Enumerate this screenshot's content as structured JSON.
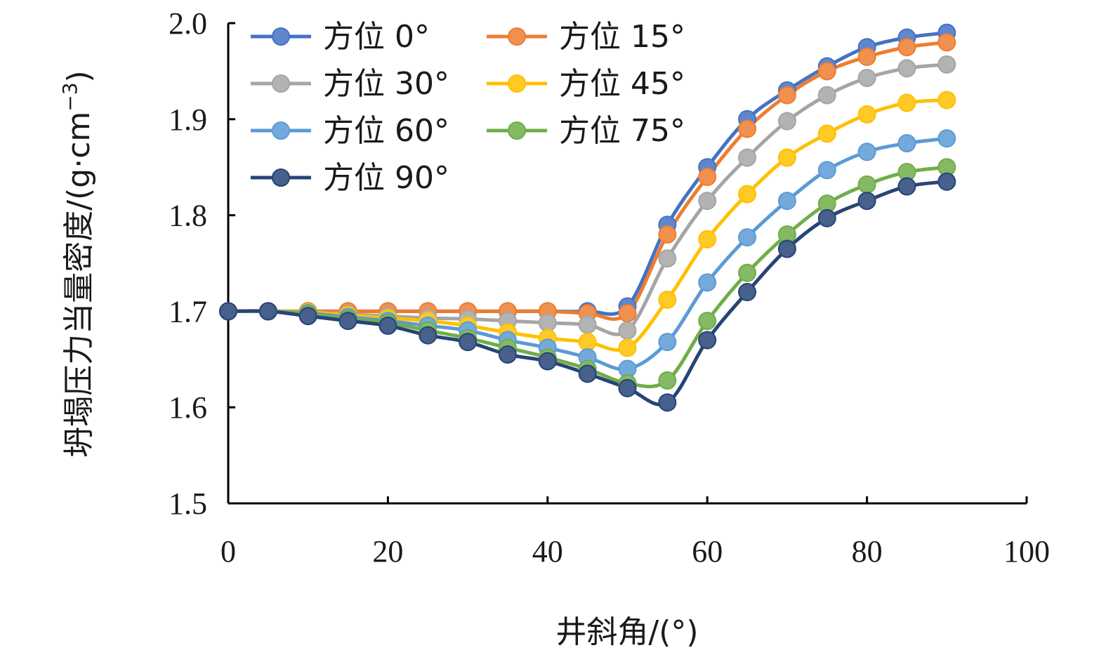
{
  "chart_data": {
    "type": "line",
    "xlabel": "井斜角/(°)",
    "ylabel": "坍塌压力当量密度/(g·cm",
    "ylabel_sup": "−3",
    "ylabel_close": ")",
    "xlim": [
      0,
      100
    ],
    "ylim": [
      1.5,
      2.0
    ],
    "xticks": [
      "0",
      "20",
      "40",
      "60",
      "80",
      "100"
    ],
    "yticks": [
      "1.5",
      "1.6",
      "1.7",
      "1.8",
      "1.9",
      "2.0"
    ],
    "grid": false,
    "legend_position": "top-left",
    "x": [
      0,
      5,
      10,
      15,
      20,
      25,
      30,
      35,
      40,
      45,
      50,
      55,
      60,
      65,
      70,
      75,
      80,
      85,
      90
    ],
    "series": [
      {
        "name": "方位 0°",
        "color": "#4472C4",
        "values": [
          1.7,
          1.7,
          1.7,
          1.7,
          1.7,
          1.7,
          1.7,
          1.7,
          1.7,
          1.7,
          1.705,
          1.79,
          1.85,
          1.9,
          1.93,
          1.955,
          1.975,
          1.985,
          1.99
        ]
      },
      {
        "name": "方位 15°",
        "color": "#ED7D31",
        "values": [
          1.7,
          1.7,
          1.7,
          1.7,
          1.7,
          1.7,
          1.7,
          1.7,
          1.7,
          1.698,
          1.698,
          1.78,
          1.84,
          1.89,
          1.925,
          1.95,
          1.965,
          1.975,
          1.98
        ]
      },
      {
        "name": "方位 30°",
        "color": "#A5A5A5",
        "values": [
          1.7,
          1.7,
          1.699,
          1.697,
          1.695,
          1.693,
          1.692,
          1.69,
          1.688,
          1.686,
          1.68,
          1.755,
          1.815,
          1.86,
          1.898,
          1.925,
          1.943,
          1.953,
          1.957
        ]
      },
      {
        "name": "方位 45°",
        "color": "#FFC000",
        "values": [
          1.7,
          1.7,
          1.699,
          1.696,
          1.693,
          1.69,
          1.685,
          1.678,
          1.672,
          1.668,
          1.662,
          1.712,
          1.775,
          1.822,
          1.86,
          1.885,
          1.905,
          1.917,
          1.92
        ]
      },
      {
        "name": "方位 60°",
        "color": "#5B9BD5",
        "values": [
          1.7,
          1.7,
          1.698,
          1.694,
          1.69,
          1.685,
          1.68,
          1.67,
          1.662,
          1.652,
          1.64,
          1.668,
          1.73,
          1.777,
          1.815,
          1.847,
          1.866,
          1.875,
          1.88
        ]
      },
      {
        "name": "方位 75°",
        "color": "#70AD47",
        "values": [
          1.7,
          1.7,
          1.697,
          1.692,
          1.688,
          1.68,
          1.672,
          1.662,
          1.652,
          1.64,
          1.625,
          1.628,
          1.69,
          1.74,
          1.78,
          1.812,
          1.832,
          1.845,
          1.85
        ]
      },
      {
        "name": "方位 90°",
        "color": "#264478",
        "values": [
          1.7,
          1.7,
          1.695,
          1.69,
          1.685,
          1.675,
          1.668,
          1.655,
          1.648,
          1.635,
          1.62,
          1.605,
          1.67,
          1.72,
          1.765,
          1.797,
          1.815,
          1.83,
          1.835
        ]
      }
    ]
  }
}
